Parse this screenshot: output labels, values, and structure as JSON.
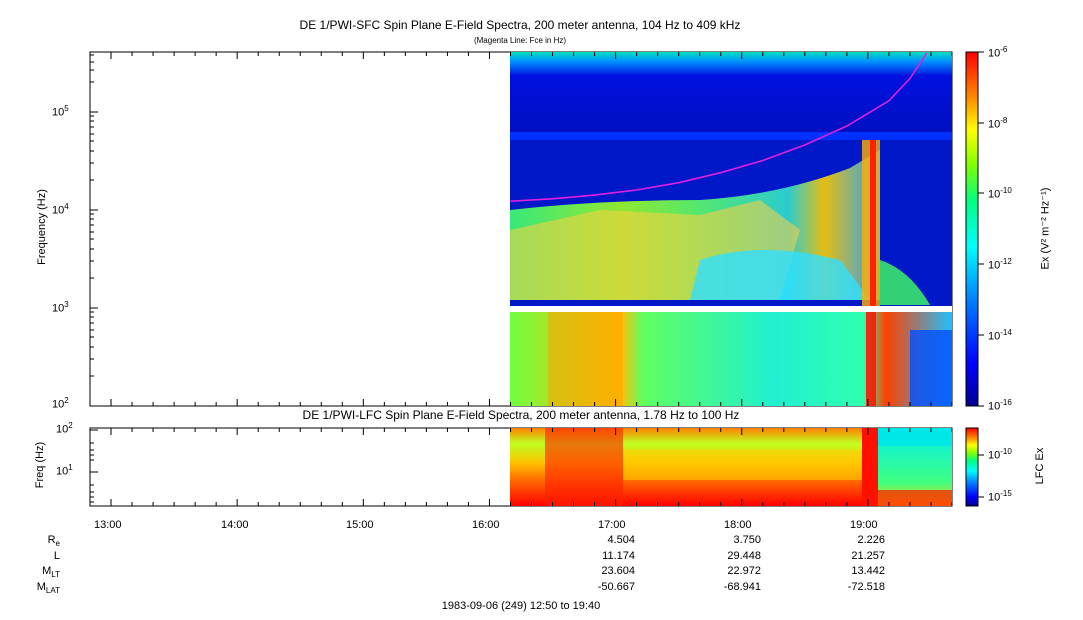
{
  "top_panel": {
    "title": "DE 1/PWI-SFC  Spin Plane E-Field Spectra, 200 meter antenna, 104 Hz to 409 kHz",
    "subtitle": "(Magenta Line: Fce in Hz)",
    "ylabel": "Frequency (Hz)",
    "yticks": [
      {
        "base": "10",
        "exp": "5"
      },
      {
        "base": "10",
        "exp": "4"
      },
      {
        "base": "10",
        "exp": "3"
      },
      {
        "base": "10",
        "exp": "2"
      }
    ],
    "colorbar_ticks": [
      {
        "base": "10",
        "exp": "-6"
      },
      {
        "base": "10",
        "exp": "-8"
      },
      {
        "base": "10",
        "exp": "-10"
      },
      {
        "base": "10",
        "exp": "-12"
      },
      {
        "base": "10",
        "exp": "-14"
      },
      {
        "base": "10",
        "exp": "-16"
      }
    ],
    "colorbar_label": "Ex (V² m⁻² Hz⁻¹)"
  },
  "bottom_panel": {
    "title": "DE 1/PWI-LFC  Spin Plane E-Field Spectra, 200 meter antenna, 1.78 Hz to 100 Hz",
    "ylabel": "Freq (Hz)",
    "yticks": [
      {
        "base": "10",
        "exp": "2"
      },
      {
        "base": "10",
        "exp": "1"
      }
    ],
    "colorbar_ticks": [
      {
        "base": "10",
        "exp": "-10"
      },
      {
        "base": "10",
        "exp": "-15"
      }
    ],
    "colorbar_label": "LFC Ex"
  },
  "time_axis": {
    "ticks": [
      "13:00",
      "14:00",
      "15:00",
      "16:00",
      "17:00",
      "18:00",
      "19:00"
    ]
  },
  "ephemeris": {
    "labels": [
      {
        "main": "R",
        "sub": "e"
      },
      {
        "main": "L",
        "sub": ""
      },
      {
        "main": "M",
        "sub": "LT"
      },
      {
        "main": "M",
        "sub": "LAT"
      }
    ],
    "columns": [
      {
        "time": "17:00",
        "values": [
          "4.504",
          "11.174",
          "23.604",
          "-50.667"
        ]
      },
      {
        "time": "18:00",
        "values": [
          "3.750",
          "29.448",
          "22.972",
          "-68.941"
        ]
      },
      {
        "time": "19:00",
        "values": [
          "2.226",
          "21.257",
          "13.442",
          "-72.518"
        ]
      }
    ]
  },
  "footer": "1983-09-06 (249) 12:50 to 19:40",
  "chart_data": [
    {
      "type": "heatmap",
      "title": "DE 1/PWI-SFC  Spin Plane E-Field Spectra, 200 meter antenna, 104 Hz to 409 kHz",
      "subtitle": "(Magenta Line: Fce in Hz)",
      "xlabel": "",
      "ylabel": "Frequency (Hz)",
      "x_range": [
        "12:50",
        "19:40"
      ],
      "y_range": [
        100,
        409000
      ],
      "y_scale": "log",
      "data_start": "16:10",
      "color_scale": "log",
      "color_range": [
        1e-16,
        1e-06
      ],
      "colorbar_label": "Ex (V2 m-2 Hz-1)",
      "series": [
        {
          "name": "Fce in Hz",
          "color": "#e020e0",
          "x": [
            "16:10",
            "16:30",
            "16:50",
            "17:10",
            "17:30",
            "17:50",
            "18:10",
            "18:30",
            "18:50",
            "19:10",
            "19:20",
            "19:28"
          ],
          "y": [
            12300,
            13000,
            14200,
            16000,
            19000,
            24000,
            32000,
            46000,
            72000,
            130000,
            220000,
            400000
          ]
        }
      ]
    },
    {
      "type": "heatmap",
      "title": "DE 1/PWI-LFC  Spin Plane E-Field Spectra, 200 meter antenna, 1.78 Hz to 100 Hz",
      "xlabel": "",
      "ylabel": "Freq (Hz)",
      "x_range": [
        "12:50",
        "19:40"
      ],
      "y_range": [
        1.78,
        100
      ],
      "y_scale": "log",
      "data_start": "16:10",
      "color_scale": "log",
      "colorbar_label": "LFC Ex"
    }
  ],
  "colors": {
    "magenta_line": "#e020e0",
    "colormap": [
      "#000090",
      "#0000ff",
      "#0080ff",
      "#00ffff",
      "#00ff80",
      "#80ff00",
      "#ffff00",
      "#ff8000",
      "#ff0000"
    ]
  }
}
